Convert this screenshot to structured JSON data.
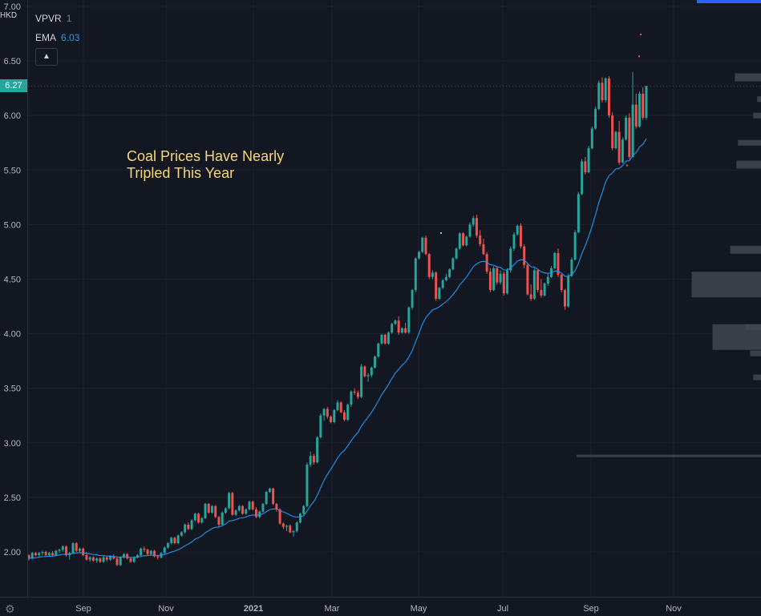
{
  "legend": {
    "vpvr_label": "VPVR",
    "vpvr_value": "1",
    "ema_label": "EMA",
    "ema_value": "6.03"
  },
  "currency": "HKD",
  "current_price": "6.27",
  "annotation": {
    "line1": "Coal Prices Have Nearly",
    "line2": "Tripled This Year"
  },
  "colors": {
    "background": "#131722",
    "up": "#26a69a",
    "down": "#ef5350",
    "ema": "#2196f3",
    "volume_profile": "#434651",
    "annotation": "#f5d77a"
  },
  "icons": {
    "collapse": "chevron-up-icon",
    "settings": "gear-icon"
  },
  "chart_data": {
    "type": "candlestick",
    "title": "",
    "ylim": [
      1.82,
      7.0
    ],
    "y_ticks": [
      "7.00",
      "6.50",
      "6.00",
      "5.50",
      "5.00",
      "4.50",
      "4.00",
      "3.50",
      "3.00",
      "2.50",
      "2.00"
    ],
    "x_ticks": [
      "Sep",
      "Nov",
      "2021",
      "Mar",
      "May",
      "Jul",
      "Sep",
      "Nov"
    ],
    "ema_last": 6.03,
    "last_close": 6.27,
    "candles": [
      [
        1.97,
        1.98,
        1.92,
        1.94
      ],
      [
        1.94,
        2.0,
        1.93,
        1.99
      ],
      [
        1.99,
        2.0,
        1.96,
        1.97
      ],
      [
        1.97,
        2.0,
        1.96,
        1.99
      ],
      [
        1.99,
        2.01,
        1.97,
        2.0
      ],
      [
        2.0,
        2.01,
        1.96,
        1.97
      ],
      [
        1.97,
        2.0,
        1.96,
        1.99
      ],
      [
        1.99,
        2.01,
        1.96,
        1.97
      ],
      [
        1.97,
        2.02,
        1.96,
        2.01
      ],
      [
        2.01,
        2.03,
        1.99,
        2.02
      ],
      [
        2.02,
        2.06,
        2.0,
        2.05
      ],
      [
        2.05,
        2.06,
        1.96,
        1.97
      ],
      [
        1.97,
        2.0,
        1.93,
        1.99
      ],
      [
        1.99,
        2.09,
        1.98,
        2.08
      ],
      [
        2.08,
        2.09,
        2.0,
        2.01
      ],
      [
        2.01,
        2.04,
        1.99,
        2.03
      ],
      [
        2.03,
        2.04,
        1.96,
        1.97
      ],
      [
        1.97,
        2.0,
        1.92,
        1.93
      ],
      [
        1.93,
        1.96,
        1.91,
        1.95
      ],
      [
        1.95,
        1.96,
        1.91,
        1.92
      ],
      [
        1.92,
        1.95,
        1.9,
        1.94
      ],
      [
        1.94,
        1.95,
        1.9,
        1.91
      ],
      [
        1.91,
        1.96,
        1.9,
        1.95
      ],
      [
        1.95,
        1.96,
        1.91,
        1.93
      ],
      [
        1.93,
        1.97,
        1.92,
        1.96
      ],
      [
        1.96,
        1.98,
        1.93,
        1.94
      ],
      [
        1.94,
        1.96,
        1.87,
        1.88
      ],
      [
        1.88,
        1.96,
        1.87,
        1.95
      ],
      [
        1.95,
        1.99,
        1.94,
        1.98
      ],
      [
        1.98,
        1.99,
        1.93,
        1.94
      ],
      [
        1.94,
        1.95,
        1.9,
        1.91
      ],
      [
        1.91,
        1.96,
        1.9,
        1.95
      ],
      [
        1.95,
        1.98,
        1.94,
        1.97
      ],
      [
        1.97,
        2.04,
        1.96,
        2.03
      ],
      [
        2.03,
        2.05,
        2.0,
        2.02
      ],
      [
        2.02,
        2.03,
        1.97,
        1.98
      ],
      [
        1.98,
        2.02,
        1.97,
        2.01
      ],
      [
        2.01,
        2.02,
        1.95,
        1.96
      ],
      [
        1.96,
        1.97,
        1.93,
        1.95
      ],
      [
        1.95,
        2.0,
        1.94,
        1.99
      ],
      [
        1.99,
        2.05,
        1.98,
        2.04
      ],
      [
        2.04,
        2.09,
        2.03,
        2.08
      ],
      [
        2.08,
        2.14,
        2.07,
        2.13
      ],
      [
        2.13,
        2.14,
        2.07,
        2.08
      ],
      [
        2.08,
        2.16,
        2.07,
        2.15
      ],
      [
        2.15,
        2.19,
        2.14,
        2.18
      ],
      [
        2.18,
        2.26,
        2.17,
        2.25
      ],
      [
        2.25,
        2.27,
        2.2,
        2.21
      ],
      [
        2.21,
        2.3,
        2.2,
        2.29
      ],
      [
        2.29,
        2.36,
        2.28,
        2.35
      ],
      [
        2.35,
        2.36,
        2.26,
        2.27
      ],
      [
        2.27,
        2.32,
        2.26,
        2.31
      ],
      [
        2.31,
        2.45,
        2.3,
        2.44
      ],
      [
        2.44,
        2.45,
        2.35,
        2.36
      ],
      [
        2.36,
        2.43,
        2.35,
        2.42
      ],
      [
        2.42,
        2.43,
        2.31,
        2.32
      ],
      [
        2.32,
        2.33,
        2.23,
        2.25
      ],
      [
        2.25,
        2.37,
        2.24,
        2.36
      ],
      [
        2.36,
        2.41,
        2.35,
        2.4
      ],
      [
        2.4,
        2.55,
        2.39,
        2.54
      ],
      [
        2.54,
        2.55,
        2.33,
        2.34
      ],
      [
        2.34,
        2.39,
        2.33,
        2.38
      ],
      [
        2.38,
        2.43,
        2.37,
        2.42
      ],
      [
        2.42,
        2.43,
        2.34,
        2.35
      ],
      [
        2.35,
        2.4,
        2.34,
        2.39
      ],
      [
        2.39,
        2.47,
        2.38,
        2.46
      ],
      [
        2.46,
        2.47,
        2.38,
        2.39
      ],
      [
        2.39,
        2.41,
        2.31,
        2.32
      ],
      [
        2.32,
        2.38,
        2.31,
        2.37
      ],
      [
        2.37,
        2.45,
        2.36,
        2.44
      ],
      [
        2.44,
        2.56,
        2.43,
        2.55
      ],
      [
        2.55,
        2.59,
        2.54,
        2.58
      ],
      [
        2.58,
        2.59,
        2.43,
        2.44
      ],
      [
        2.44,
        2.45,
        2.37,
        2.39
      ],
      [
        2.39,
        2.4,
        2.25,
        2.26
      ],
      [
        2.26,
        2.27,
        2.21,
        2.23
      ],
      [
        2.23,
        2.25,
        2.19,
        2.24
      ],
      [
        2.24,
        2.25,
        2.17,
        2.18
      ],
      [
        2.18,
        2.2,
        2.14,
        2.19
      ],
      [
        2.19,
        2.28,
        2.18,
        2.27
      ],
      [
        2.27,
        2.36,
        2.26,
        2.35
      ],
      [
        2.35,
        2.43,
        2.34,
        2.42
      ],
      [
        2.42,
        2.82,
        2.41,
        2.8
      ],
      [
        2.8,
        2.92,
        2.78,
        2.88
      ],
      [
        2.88,
        2.9,
        2.8,
        2.82
      ],
      [
        2.82,
        3.06,
        2.81,
        3.05
      ],
      [
        3.05,
        3.27,
        3.04,
        3.25
      ],
      [
        3.25,
        3.32,
        3.2,
        3.31
      ],
      [
        3.31,
        3.33,
        3.22,
        3.24
      ],
      [
        3.24,
        3.25,
        3.18,
        3.19
      ],
      [
        3.19,
        3.31,
        3.18,
        3.3
      ],
      [
        3.3,
        3.39,
        3.29,
        3.37
      ],
      [
        3.37,
        3.38,
        3.27,
        3.28
      ],
      [
        3.28,
        3.3,
        3.2,
        3.21
      ],
      [
        3.21,
        3.36,
        3.2,
        3.35
      ],
      [
        3.35,
        3.48,
        3.33,
        3.47
      ],
      [
        3.47,
        3.5,
        3.44,
        3.46
      ],
      [
        3.46,
        3.48,
        3.4,
        3.42
      ],
      [
        3.42,
        3.72,
        3.41,
        3.7
      ],
      [
        3.7,
        3.71,
        3.6,
        3.61
      ],
      [
        3.61,
        3.64,
        3.56,
        3.62
      ],
      [
        3.62,
        3.7,
        3.6,
        3.69
      ],
      [
        3.69,
        3.8,
        3.68,
        3.79
      ],
      [
        3.79,
        3.92,
        3.78,
        3.91
      ],
      [
        3.91,
        4.0,
        3.9,
        3.99
      ],
      [
        3.99,
        4.0,
        3.9,
        3.91
      ],
      [
        3.91,
        4.02,
        3.9,
        4.01
      ],
      [
        4.01,
        4.1,
        4.0,
        4.09
      ],
      [
        4.09,
        4.13,
        4.08,
        4.12
      ],
      [
        4.12,
        4.16,
        3.99,
        4.01
      ],
      [
        4.01,
        4.06,
        4.0,
        4.05
      ],
      [
        4.05,
        4.1,
        4.0,
        4.01
      ],
      [
        4.01,
        4.25,
        4.0,
        4.24
      ],
      [
        4.24,
        4.41,
        4.22,
        4.4
      ],
      [
        4.4,
        4.7,
        4.38,
        4.69
      ],
      [
        4.69,
        4.76,
        4.68,
        4.75
      ],
      [
        4.75,
        4.89,
        4.74,
        4.88
      ],
      [
        4.88,
        4.9,
        4.72,
        4.73
      ],
      [
        4.73,
        4.74,
        4.5,
        4.52
      ],
      [
        4.52,
        4.58,
        4.5,
        4.56
      ],
      [
        4.56,
        4.57,
        4.3,
        4.32
      ],
      [
        4.32,
        4.43,
        4.31,
        4.42
      ],
      [
        4.42,
        4.5,
        4.41,
        4.49
      ],
      [
        4.49,
        4.55,
        4.48,
        4.52
      ],
      [
        4.52,
        4.6,
        4.51,
        4.59
      ],
      [
        4.59,
        4.7,
        4.58,
        4.69
      ],
      [
        4.69,
        4.79,
        4.68,
        4.78
      ],
      [
        4.78,
        4.93,
        4.77,
        4.92
      ],
      [
        4.92,
        4.93,
        4.8,
        4.81
      ],
      [
        4.81,
        4.9,
        4.8,
        4.89
      ],
      [
        4.89,
        5.02,
        4.88,
        5.0
      ],
      [
        5.0,
        5.08,
        4.98,
        5.06
      ],
      [
        5.06,
        5.09,
        4.88,
        4.9
      ],
      [
        4.9,
        4.95,
        4.8,
        4.82
      ],
      [
        4.82,
        4.87,
        4.72,
        4.73
      ],
      [
        4.73,
        4.75,
        4.55,
        4.57
      ],
      [
        4.57,
        4.6,
        4.38,
        4.4
      ],
      [
        4.4,
        4.62,
        4.39,
        4.6
      ],
      [
        4.6,
        4.62,
        4.45,
        4.47
      ],
      [
        4.47,
        4.58,
        4.45,
        4.55
      ],
      [
        4.55,
        4.57,
        4.35,
        4.37
      ],
      [
        4.37,
        4.6,
        4.36,
        4.58
      ],
      [
        4.58,
        4.8,
        4.56,
        4.78
      ],
      [
        4.78,
        4.93,
        4.76,
        4.91
      ],
      [
        4.91,
        5.0,
        4.9,
        4.99
      ],
      [
        4.99,
        5.01,
        4.78,
        4.8
      ],
      [
        4.8,
        4.82,
        4.6,
        4.63
      ],
      [
        4.63,
        4.64,
        4.35,
        4.36
      ],
      [
        4.36,
        4.45,
        4.3,
        4.32
      ],
      [
        4.32,
        4.6,
        4.31,
        4.58
      ],
      [
        4.58,
        4.59,
        4.38,
        4.4
      ],
      [
        4.4,
        4.5,
        4.33,
        4.35
      ],
      [
        4.35,
        4.47,
        4.34,
        4.46
      ],
      [
        4.46,
        4.55,
        4.44,
        4.52
      ],
      [
        4.52,
        4.62,
        4.51,
        4.6
      ],
      [
        4.6,
        4.75,
        4.59,
        4.74
      ],
      [
        4.74,
        4.78,
        4.52,
        4.54
      ],
      [
        4.54,
        4.55,
        4.38,
        4.4
      ],
      [
        4.4,
        4.41,
        4.22,
        4.25
      ],
      [
        4.25,
        4.55,
        4.24,
        4.53
      ],
      [
        4.53,
        4.7,
        4.52,
        4.68
      ],
      [
        4.68,
        4.95,
        4.67,
        4.93
      ],
      [
        4.93,
        5.3,
        4.92,
        5.28
      ],
      [
        5.28,
        5.6,
        5.27,
        5.58
      ],
      [
        5.58,
        5.62,
        5.46,
        5.48
      ],
      [
        5.48,
        5.72,
        5.47,
        5.7
      ],
      [
        5.7,
        5.9,
        5.69,
        5.88
      ],
      [
        5.88,
        6.08,
        5.87,
        6.06
      ],
      [
        6.06,
        6.32,
        6.05,
        6.3
      ],
      [
        6.3,
        6.35,
        6.12,
        6.14
      ],
      [
        6.14,
        6.35,
        6.12,
        6.34
      ],
      [
        6.34,
        6.36,
        5.98,
        6.0
      ],
      [
        6.0,
        6.03,
        5.68,
        5.7
      ],
      [
        5.7,
        5.86,
        5.69,
        5.85
      ],
      [
        5.85,
        5.95,
        5.55,
        5.57
      ],
      [
        5.57,
        5.8,
        5.56,
        5.78
      ],
      [
        5.78,
        6.0,
        5.77,
        5.98
      ],
      [
        5.98,
        6.02,
        5.6,
        5.62
      ],
      [
        5.62,
        6.4,
        5.61,
        6.1
      ],
      [
        6.1,
        6.2,
        5.88,
        5.9
      ],
      [
        5.9,
        6.22,
        5.89,
        6.2
      ],
      [
        6.2,
        6.26,
        5.96,
        5.98
      ],
      [
        5.98,
        6.27,
        5.96,
        6.27
      ]
    ],
    "volume_profile": [
      {
        "price": 6.35,
        "volume": 0.34
      },
      {
        "price": 6.15,
        "volume": 0.05
      },
      {
        "price": 6.0,
        "volume": 0.1
      },
      {
        "price": 5.75,
        "volume": 0.3
      },
      {
        "price": 5.55,
        "volume": 0.32
      },
      {
        "price": 4.77,
        "volume": 0.4
      },
      {
        "price": 4.45,
        "volume": 0.9
      },
      {
        "price": 4.06,
        "volume": 0.2
      },
      {
        "price": 3.97,
        "volume": 0.63
      },
      {
        "price": 3.82,
        "volume": 0.14
      },
      {
        "price": 3.6,
        "volume": 0.1
      },
      {
        "price": 2.88,
        "volume": 2.4
      }
    ]
  },
  "overlay_markers": [
    6.75,
    6.55,
    5.55,
    4.93
  ]
}
